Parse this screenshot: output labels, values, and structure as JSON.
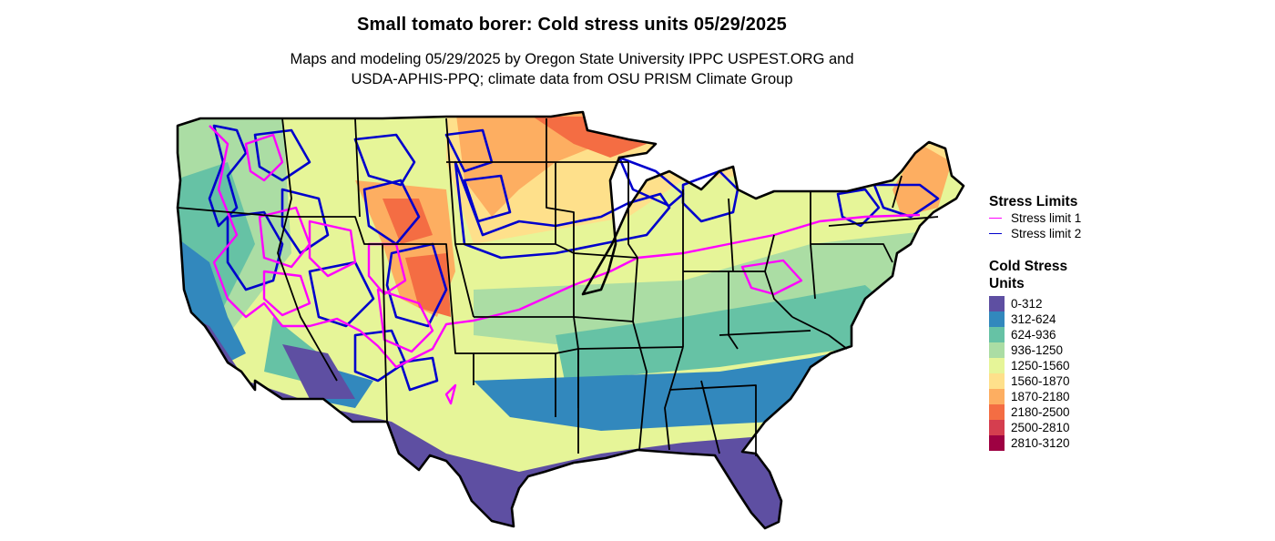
{
  "title": "Small tomato borer: Cold stress units 05/29/2025",
  "subtitle_line1": "Maps and modeling 05/29/2025 by Oregon State University IPPC USPEST.ORG and",
  "subtitle_line2": "USDA-APHIS-PPQ; climate data from OSU PRISM Climate Group",
  "legend_limits": {
    "title": "Stress Limits",
    "items": [
      {
        "label": "Stress limit 1",
        "color": "#ff00ff"
      },
      {
        "label": "Stress limit 2",
        "color": "#0000cc"
      }
    ]
  },
  "legend_csu": {
    "title": "Cold Stress Units",
    "items": [
      {
        "label": "0-312",
        "color": "#5e4fa2"
      },
      {
        "label": "312-624",
        "color": "#3288bd"
      },
      {
        "label": "624-936",
        "color": "#66c2a5"
      },
      {
        "label": "936-1250",
        "color": "#abdda4"
      },
      {
        "label": "1250-1560",
        "color": "#e6f598"
      },
      {
        "label": "1560-1870",
        "color": "#fee08b"
      },
      {
        "label": "1870-2180",
        "color": "#fdae61"
      },
      {
        "label": "2180-2500",
        "color": "#f46d43"
      },
      {
        "label": "2500-2810",
        "color": "#d53e4f"
      },
      {
        "label": "2810-3120",
        "color": "#9e0142"
      }
    ]
  }
}
